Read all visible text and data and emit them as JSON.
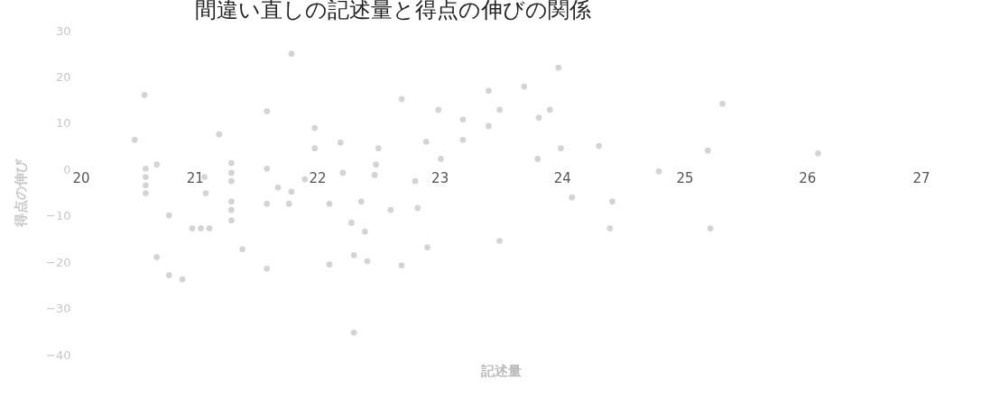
{
  "chart_data": {
    "type": "scatter",
    "title": "間違い直しの記述量と得点の伸びの関係",
    "xlabel": "記述量",
    "ylabel": "得点の伸び",
    "xlim": [
      20,
      27
    ],
    "xticks": [
      20,
      21,
      22,
      23,
      24,
      25,
      26,
      27
    ],
    "ylim": [
      -40,
      30
    ],
    "yticks": [
      -40,
      -30,
      -20,
      -10,
      0,
      10,
      20,
      30
    ],
    "grid": false,
    "marker": "circle",
    "series": [
      {
        "color": "#d4d4d4",
        "x": [
          20.51,
          20.59,
          20.6,
          20.6,
          20.6,
          20.6,
          20.69,
          20.79,
          20.69,
          20.79,
          20.9,
          20.98,
          21.05,
          21.12,
          21.08,
          21.09,
          21.2,
          21.3,
          21.3,
          21.3,
          21.3,
          21.3,
          21.3,
          21.39,
          21.59,
          21.59,
          21.59,
          21.59,
          21.68,
          21.77,
          21.79,
          21.79,
          21.98,
          21.98,
          21.9,
          22.1,
          22.1,
          22.19,
          22.21,
          22.28,
          22.3,
          22.3,
          22.36,
          22.39,
          22.41,
          22.47,
          22.48,
          22.5,
          22.6,
          22.69,
          22.69,
          22.8,
          22.82,
          22.89,
          22.99,
          23.01,
          22.9,
          23.19,
          23.19,
          23.4,
          23.49,
          23.4,
          23.49,
          23.69,
          23.81,
          23.9,
          23.8,
          23.97,
          23.99,
          24.08,
          24.3,
          24.41,
          24.39,
          24.79,
          25.19,
          25.21,
          25.31,
          26.09
        ],
        "values": [
          6.4,
          16.1,
          0.2,
          -1.6,
          -3.4,
          -5.1,
          1.1,
          -9.9,
          -18.9,
          -22.8,
          -23.7,
          -12.7,
          -12.7,
          -12.7,
          -1.6,
          -5.1,
          7.6,
          1.4,
          -0.7,
          -2.5,
          -6.9,
          -8.7,
          -11.0,
          -17.2,
          12.6,
          0.2,
          -7.4,
          -21.4,
          -3.9,
          -7.4,
          -4.8,
          25.0,
          9.0,
          4.6,
          -2.1,
          -7.4,
          -20.5,
          5.8,
          -0.7,
          -11.5,
          -18.5,
          -35.2,
          -6.9,
          -13.4,
          -19.8,
          -1.2,
          1.1,
          4.6,
          -8.7,
          15.2,
          -20.7,
          -2.5,
          -8.3,
          6.0,
          12.9,
          2.3,
          -16.8,
          10.8,
          6.4,
          17.0,
          12.9,
          9.4,
          -15.4,
          17.9,
          11.2,
          12.9,
          2.3,
          22.0,
          4.6,
          -6.0,
          5.1,
          -6.9,
          -12.7,
          -0.4,
          4.1,
          -12.7,
          14.2,
          3.5
        ]
      }
    ]
  }
}
